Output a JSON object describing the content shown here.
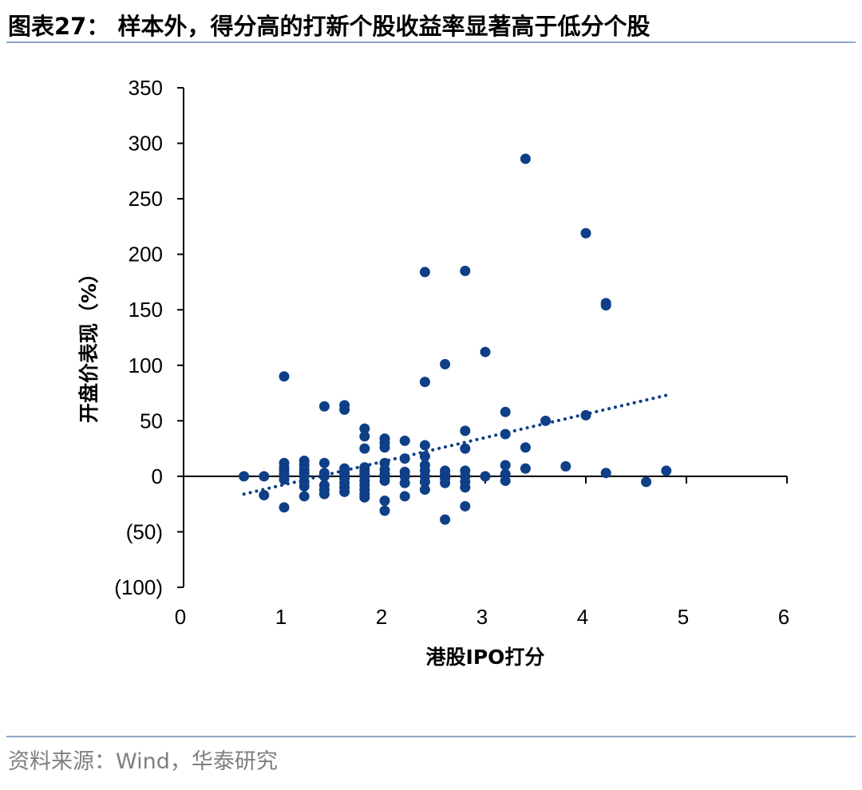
{
  "title": "图表27：  样本外，得分高的打新个股收益率显著高于低分个股",
  "source": "资料来源：Wind，华泰研究",
  "chart_data": {
    "type": "scatter",
    "xlabel": "港股IPO打分",
    "ylabel": "开盘价表现（%）",
    "xlim": [
      0,
      6
    ],
    "ylim": [
      -100,
      350
    ],
    "x_ticks": [
      "0",
      "1",
      "2",
      "3",
      "4",
      "5",
      "6"
    ],
    "y_ticks": [
      "350",
      "300",
      "250",
      "200",
      "150",
      "100",
      "50",
      "0",
      "(50)",
      "(100)"
    ],
    "y_tick_values": [
      350,
      300,
      250,
      200,
      150,
      100,
      50,
      0,
      -50,
      -100
    ],
    "point_color": "#0f3f86",
    "trendline": {
      "style": "dotted",
      "x": [
        0.6,
        4.8
      ],
      "y": [
        -16,
        73
      ]
    },
    "points": [
      [
        0.6,
        0
      ],
      [
        0.8,
        0
      ],
      [
        0.8,
        -17
      ],
      [
        1.0,
        90
      ],
      [
        1.0,
        12
      ],
      [
        1.0,
        8
      ],
      [
        1.0,
        5
      ],
      [
        1.0,
        2
      ],
      [
        1.0,
        0
      ],
      [
        1.0,
        -3
      ],
      [
        1.0,
        -28
      ],
      [
        1.2,
        14
      ],
      [
        1.2,
        10
      ],
      [
        1.2,
        6
      ],
      [
        1.2,
        3
      ],
      [
        1.2,
        0
      ],
      [
        1.2,
        -5
      ],
      [
        1.2,
        -9
      ],
      [
        1.2,
        -18
      ],
      [
        1.4,
        63
      ],
      [
        1.4,
        12
      ],
      [
        1.4,
        3
      ],
      [
        1.4,
        0
      ],
      [
        1.4,
        -8
      ],
      [
        1.4,
        -12
      ],
      [
        1.4,
        -16
      ],
      [
        1.6,
        64
      ],
      [
        1.6,
        60
      ],
      [
        1.6,
        7
      ],
      [
        1.6,
        4
      ],
      [
        1.6,
        1
      ],
      [
        1.6,
        -2
      ],
      [
        1.6,
        -6
      ],
      [
        1.6,
        -10
      ],
      [
        1.6,
        -14
      ],
      [
        1.8,
        43
      ],
      [
        1.8,
        36
      ],
      [
        1.8,
        25
      ],
      [
        1.8,
        8
      ],
      [
        1.8,
        5
      ],
      [
        1.8,
        2
      ],
      [
        1.8,
        0
      ],
      [
        1.8,
        -4
      ],
      [
        1.8,
        -8
      ],
      [
        1.8,
        -12
      ],
      [
        1.8,
        -16
      ],
      [
        1.8,
        -19
      ],
      [
        2.0,
        34
      ],
      [
        2.0,
        30
      ],
      [
        2.0,
        26
      ],
      [
        2.0,
        12
      ],
      [
        2.0,
        6
      ],
      [
        2.0,
        2
      ],
      [
        2.0,
        0
      ],
      [
        2.0,
        -4
      ],
      [
        2.0,
        -22
      ],
      [
        2.0,
        -31
      ],
      [
        2.2,
        32
      ],
      [
        2.2,
        16
      ],
      [
        2.2,
        4
      ],
      [
        2.2,
        0
      ],
      [
        2.2,
        -6
      ],
      [
        2.2,
        -18
      ],
      [
        2.4,
        184
      ],
      [
        2.4,
        85
      ],
      [
        2.4,
        28
      ],
      [
        2.4,
        18
      ],
      [
        2.4,
        10
      ],
      [
        2.4,
        5
      ],
      [
        2.4,
        0
      ],
      [
        2.4,
        -5
      ],
      [
        2.4,
        -12
      ],
      [
        2.6,
        101
      ],
      [
        2.6,
        5
      ],
      [
        2.6,
        2
      ],
      [
        2.6,
        -2
      ],
      [
        2.6,
        -6
      ],
      [
        2.6,
        -39
      ],
      [
        2.8,
        185
      ],
      [
        2.8,
        41
      ],
      [
        2.8,
        25
      ],
      [
        2.8,
        5
      ],
      [
        2.8,
        0
      ],
      [
        2.8,
        -5
      ],
      [
        2.8,
        -10
      ],
      [
        2.8,
        -27
      ],
      [
        3.0,
        112
      ],
      [
        3.0,
        0
      ],
      [
        3.2,
        58
      ],
      [
        3.2,
        38
      ],
      [
        3.2,
        10
      ],
      [
        3.2,
        2
      ],
      [
        3.2,
        -4
      ],
      [
        3.4,
        286
      ],
      [
        3.4,
        26
      ],
      [
        3.4,
        7
      ],
      [
        3.6,
        50
      ],
      [
        3.8,
        9
      ],
      [
        4.0,
        219
      ],
      [
        4.0,
        55
      ],
      [
        4.2,
        156
      ],
      [
        4.2,
        154
      ],
      [
        4.2,
        3
      ],
      [
        4.6,
        -5
      ],
      [
        4.8,
        5
      ]
    ]
  }
}
